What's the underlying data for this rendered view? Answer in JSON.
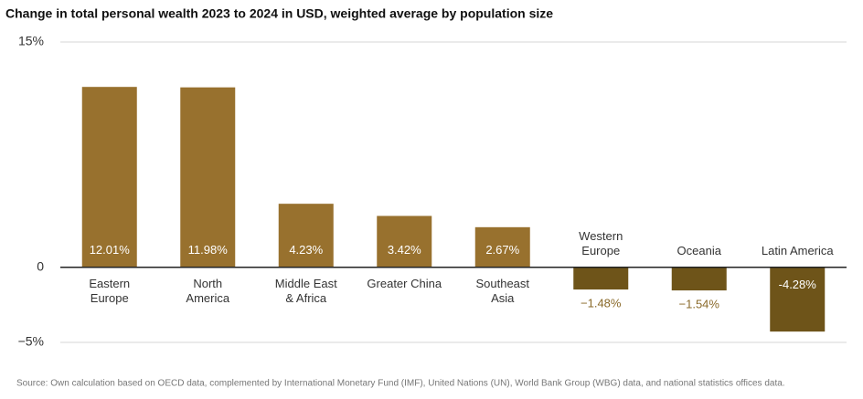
{
  "chart_data": {
    "type": "bar",
    "title": "Change in total personal wealth 2023 to 2024 in USD, weighted average by population size",
    "categories": [
      "Eastern\nEurope",
      "North\nAmerica",
      "Middle East\n& Africa",
      "Greater China",
      "Southeast\nAsia",
      "Western\nEurope",
      "Oceania",
      "Latin America"
    ],
    "values": [
      12.01,
      11.98,
      4.23,
      3.42,
      2.67,
      -1.48,
      -1.54,
      -4.28
    ],
    "value_labels": [
      "12.01%",
      "11.98%",
      "4.23%",
      "3.42%",
      "2.67%",
      "−1.48%",
      "−1.54%",
      "-4.28%"
    ],
    "colors": [
      "#98712e",
      "#98712e",
      "#98712e",
      "#98712e",
      "#98712e",
      "#6e5419",
      "#6e5419",
      "#6e5419"
    ],
    "ylim": [
      -5,
      15
    ],
    "yticks": [
      {
        "value": -5,
        "label": "−5%"
      },
      0,
      {
        "value": 15,
        "label": "15%"
      }
    ],
    "grid": true,
    "source": "Source: Own calculation based on OECD data, complemented by International Monetary Fund (IMF), United Nations (UN), World Bank Group (WBG) data, and national statistics offices data."
  }
}
